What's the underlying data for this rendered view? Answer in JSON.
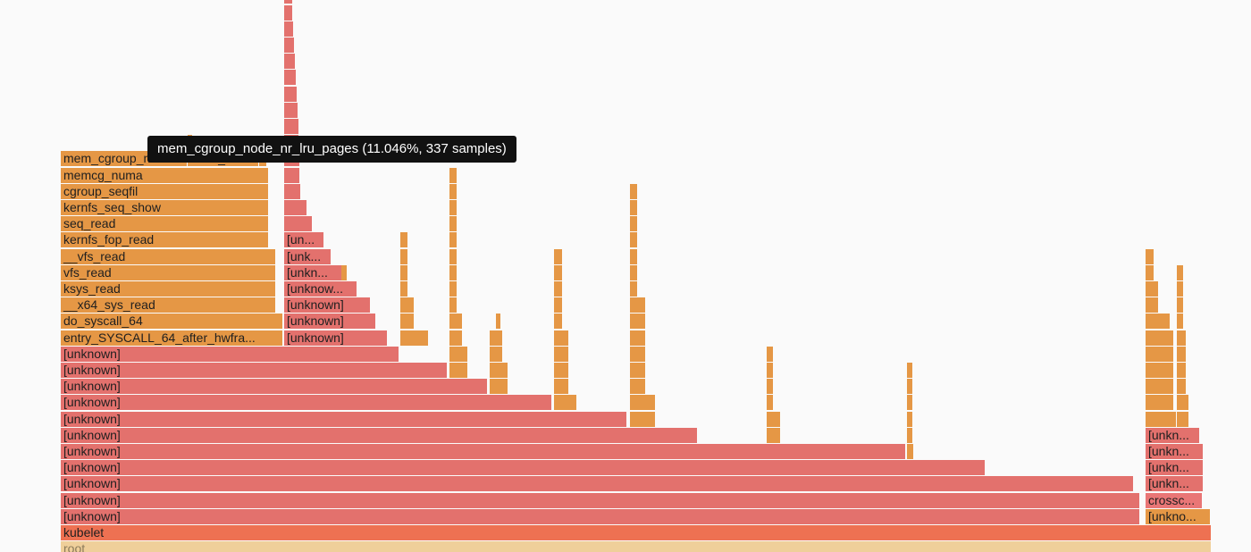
{
  "tooltip": {
    "text": "mem_cgroup_node_nr_lru_pages (11.046%, 337 samples)"
  },
  "colors": {
    "root": "#efcf9a",
    "kubelet": "#ee7152",
    "unknown": "#e3716d",
    "kernel": "#e59745",
    "cross": "#e97676",
    "background": "#fafafa",
    "tooltip_bg": "#111111"
  },
  "frames": [
    {
      "label": "root",
      "name": "frame-root"
    },
    {
      "label": "kubelet",
      "name": "frame-kubelet"
    },
    {
      "label": "[unknown]"
    },
    {
      "label": "[unkno..."
    },
    {
      "label": "crossc..."
    },
    {
      "label": "[unkn..."
    },
    {
      "label": "entry_SYSCALL_64_after_hwfra..."
    },
    {
      "label": "do_syscall_64"
    },
    {
      "label": "__x64_sys_read"
    },
    {
      "label": "ksys_read"
    },
    {
      "label": "vfs_read"
    },
    {
      "label": "__vfs_read"
    },
    {
      "label": "kernfs_fop_read"
    },
    {
      "label": "seq_read"
    },
    {
      "label": "kernfs_seq_show"
    },
    {
      "label": "cgroup_seqfil"
    },
    {
      "label": "memcg_numa"
    },
    {
      "label": "mem_cgroup_no..."
    },
    {
      "label": "mem_..."
    },
    {
      "label": "[unknown]"
    },
    {
      "label": "[unknow..."
    },
    {
      "label": "[unkn..."
    },
    {
      "label": "[unk..."
    },
    {
      "label": "[un..."
    }
  ]
}
